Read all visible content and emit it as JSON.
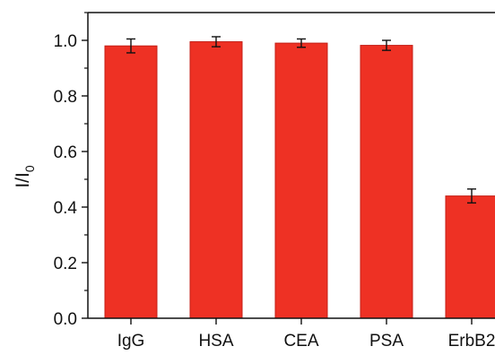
{
  "chart_data": {
    "type": "bar",
    "categories": [
      "IgG",
      "HSA",
      "CEA",
      "PSA",
      "ErbB2"
    ],
    "values": [
      0.98,
      0.995,
      0.99,
      0.982,
      0.44
    ],
    "errors": [
      0.025,
      0.018,
      0.015,
      0.018,
      0.025
    ],
    "title": "",
    "xlabel": "",
    "ylabel": "I/I",
    "ylabel_subscript": "0",
    "ylim": [
      0,
      1.1
    ],
    "yticks": [
      "0.0",
      "0.2",
      "0.4",
      "0.6",
      "0.8",
      "1.0"
    ],
    "grid": false,
    "legend": "none",
    "bar_color": "#ee3124",
    "bar_edge_color": "#c41e16"
  }
}
